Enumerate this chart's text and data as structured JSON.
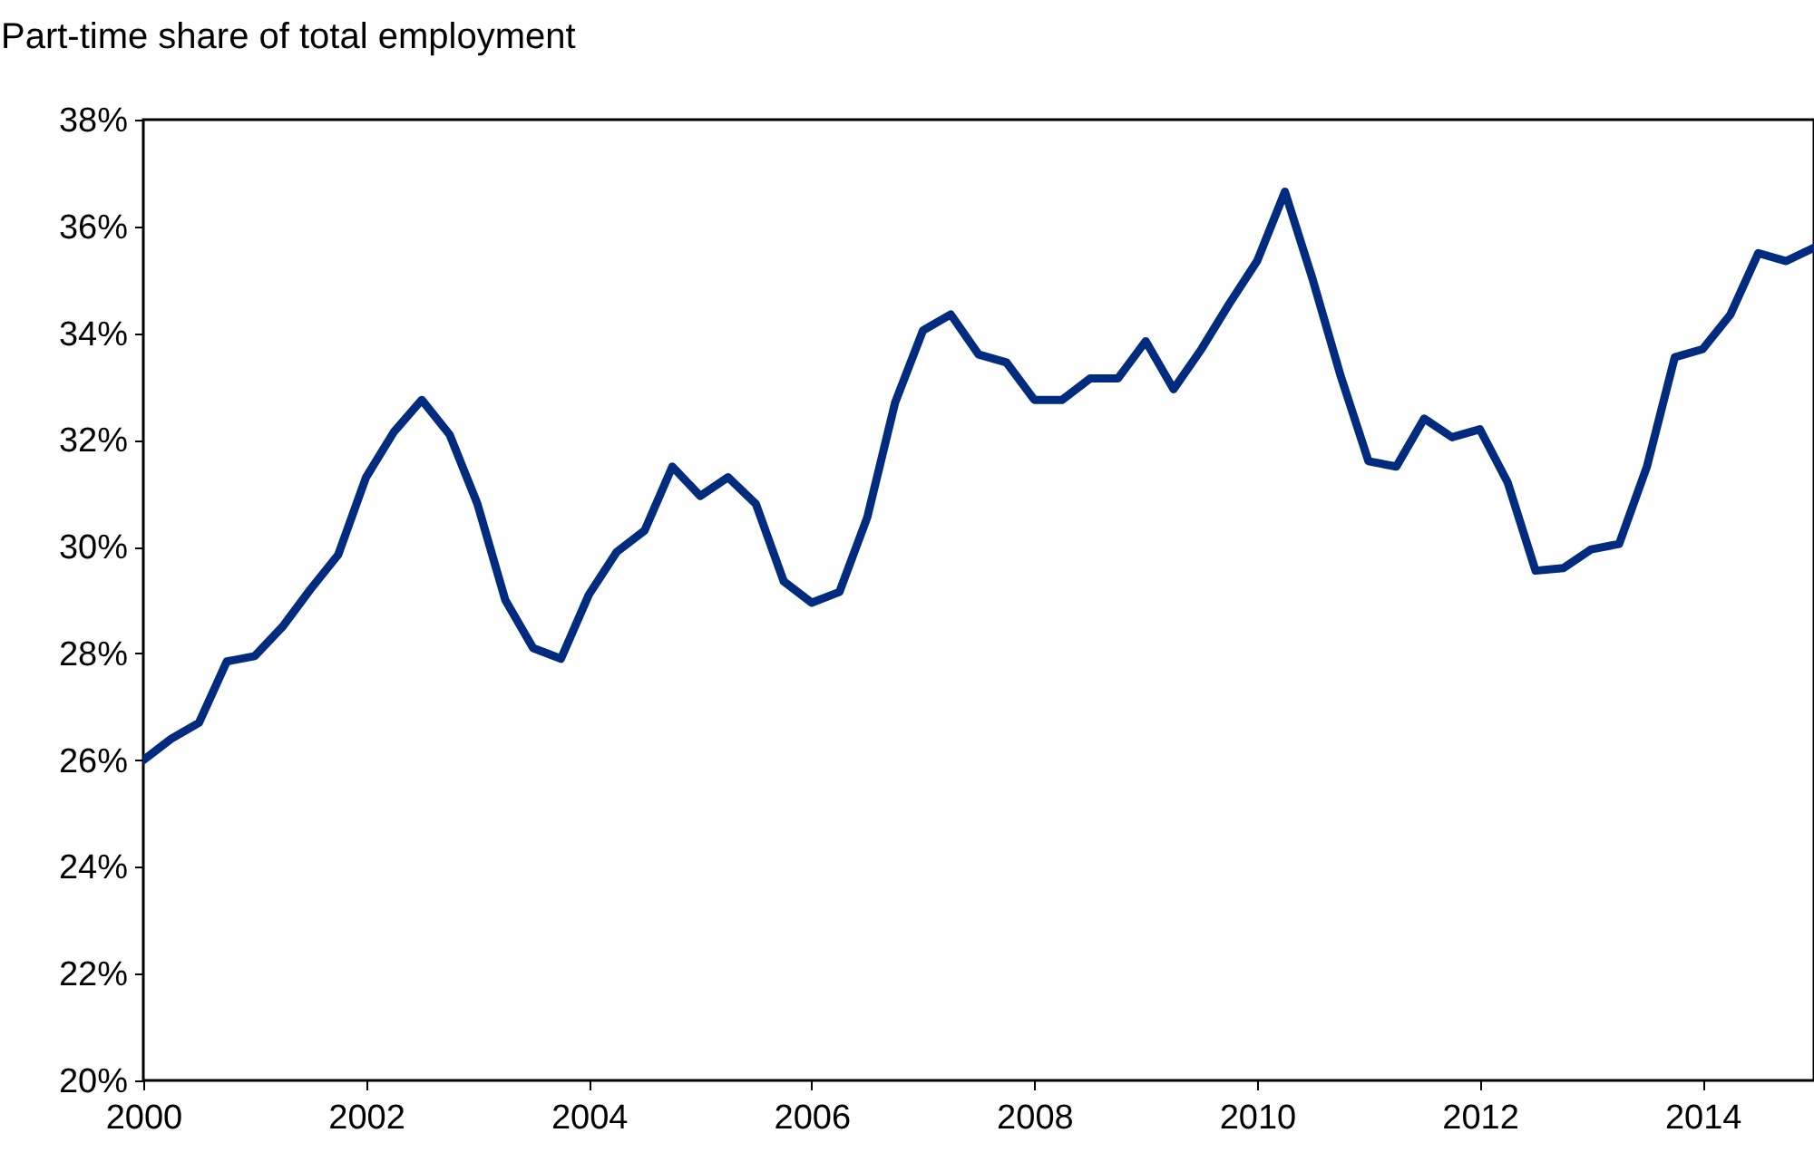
{
  "chart_data": {
    "type": "line",
    "ylabel": "Part-time share of total employment",
    "x": [
      2000,
      2000.25,
      2000.5,
      2000.75,
      2001,
      2001.25,
      2001.5,
      2001.75,
      2002,
      2002.25,
      2002.5,
      2002.75,
      2003,
      2003.25,
      2003.5,
      2003.75,
      2004,
      2004.25,
      2004.5,
      2004.75,
      2005,
      2005.25,
      2005.5,
      2005.75,
      2006,
      2006.25,
      2006.5,
      2006.75,
      2007,
      2007.25,
      2007.5,
      2007.75,
      2008,
      2008.25,
      2008.5,
      2008.75,
      2009,
      2009.25,
      2009.5,
      2009.75,
      2010,
      2010.25,
      2010.5,
      2010.75,
      2011,
      2011.25,
      2011.5,
      2011.75,
      2012,
      2012.25,
      2012.5,
      2012.75,
      2013,
      2013.25,
      2013.5,
      2013.75,
      2014,
      2014.25,
      2014.5,
      2014.75,
      2015
    ],
    "series": [
      {
        "color": "#002b7f",
        "values": [
          26.0,
          26.4,
          26.7,
          27.85,
          27.95,
          28.5,
          29.2,
          29.85,
          31.3,
          32.15,
          32.75,
          32.1,
          30.8,
          29.0,
          28.1,
          27.9,
          29.1,
          29.9,
          30.3,
          31.5,
          30.95,
          31.3,
          30.8,
          29.35,
          28.95,
          29.15,
          30.55,
          32.7,
          34.05,
          34.35,
          33.6,
          33.45,
          32.75,
          32.75,
          33.15,
          33.15,
          33.85,
          32.95,
          33.7,
          34.55,
          35.35,
          36.65,
          35.0,
          33.2,
          31.6,
          31.5,
          32.4,
          32.05,
          32.2,
          31.2,
          29.55,
          29.6,
          29.95,
          30.05,
          31.5,
          33.55,
          33.7,
          34.35,
          35.5,
          35.35,
          35.6
        ]
      }
    ],
    "xlim": [
      2000,
      2015
    ],
    "xticks": [
      2000,
      2002,
      2004,
      2006,
      2008,
      2010,
      2012,
      2014
    ],
    "ylim": [
      20,
      38
    ],
    "yticks": [
      {
        "value": 20,
        "label": "20%"
      },
      {
        "value": 22,
        "label": "22%"
      },
      {
        "value": 24,
        "label": "24%"
      },
      {
        "value": 26,
        "label": "26%"
      },
      {
        "value": 28,
        "label": "28%"
      },
      {
        "value": 30,
        "label": "30%"
      },
      {
        "value": 32,
        "label": "32%"
      },
      {
        "value": 34,
        "label": "34%"
      },
      {
        "value": 36,
        "label": "36%"
      },
      {
        "value": 38,
        "label": "38%"
      }
    ],
    "grid": false
  }
}
